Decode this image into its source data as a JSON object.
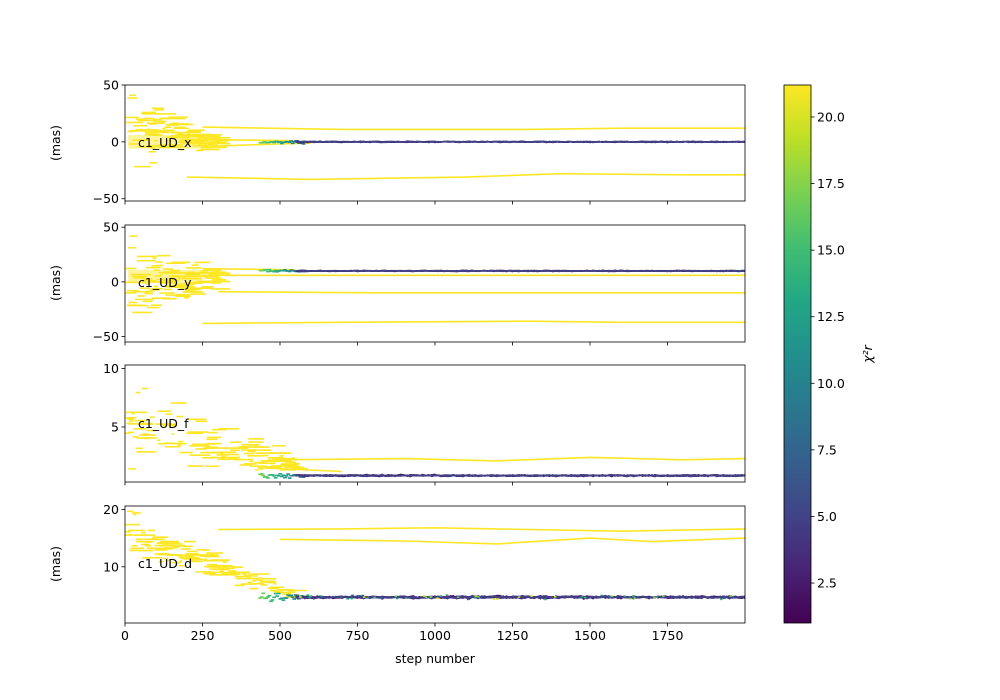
{
  "colorbar": {
    "label": "χ²r",
    "ticks": [
      "2.5",
      "5.0",
      "7.5",
      "10.0",
      "12.5",
      "15.0",
      "17.5",
      "20.0"
    ],
    "tick_values": [
      2.5,
      5.0,
      7.5,
      10.0,
      12.5,
      15.0,
      17.5,
      20.0
    ],
    "range": [
      1.0,
      21.2
    ],
    "colormap": "viridis",
    "stops": [
      "#440154",
      "#482475",
      "#414487",
      "#355f8d",
      "#2a788e",
      "#21908d",
      "#22a884",
      "#42be71",
      "#7ad151",
      "#bddf26",
      "#fde725"
    ]
  },
  "x_axis": {
    "label": "step number",
    "ticks": [
      "0",
      "250",
      "500",
      "750",
      "1000",
      "1250",
      "1500",
      "1750"
    ],
    "tick_values": [
      0,
      250,
      500,
      750,
      1000,
      1250,
      1500,
      1750
    ],
    "range": [
      0,
      2000
    ]
  },
  "chart_data": [
    {
      "type": "line",
      "parameter": "c1_UD_x",
      "ylabel": "(mas)",
      "ylim": [
        -52,
        50
      ],
      "yticks": [
        -50,
        0,
        50
      ],
      "ytick_labels": [
        "−50",
        "0",
        "50"
      ],
      "converged_start": 550,
      "converged_value": 0,
      "converged_spread": 0.8,
      "side_chains": [
        {
          "points": [
            [
              250,
              13
            ],
            [
              700,
              11
            ],
            [
              1300,
              11
            ],
            [
              1600,
              12
            ],
            [
              2000,
              12
            ]
          ]
        },
        {
          "points": [
            [
              200,
              -31
            ],
            [
              600,
              -33
            ],
            [
              1100,
              -31
            ],
            [
              1400,
              -28
            ],
            [
              1800,
              -29
            ],
            [
              2000,
              -29
            ]
          ]
        },
        {
          "points": [
            [
              250,
              2
            ],
            [
              550,
              1
            ]
          ]
        },
        {
          "points": [
            [
              250,
              -4
            ],
            [
              600,
              -1
            ]
          ]
        }
      ],
      "burn_in_cloud": {
        "center_start": 10,
        "center_end": 0,
        "spread_start": 45,
        "spread_end": 5,
        "until": 300
      }
    },
    {
      "type": "line",
      "parameter": "c1_UD_y",
      "ylabel": "(mas)",
      "ylim": [
        -55,
        52
      ],
      "yticks": [
        -50,
        0,
        50
      ],
      "ytick_labels": [
        "−50",
        "0",
        "50"
      ],
      "converged_start": 550,
      "converged_value": 10,
      "converged_spread": 0.8,
      "side_chains": [
        {
          "points": [
            [
              250,
              6
            ],
            [
              700,
              6
            ],
            [
              1300,
              6
            ],
            [
              2000,
              6
            ]
          ]
        },
        {
          "points": [
            [
              300,
              -9
            ],
            [
              800,
              -10
            ],
            [
              1400,
              -10
            ],
            [
              2000,
              -10
            ]
          ]
        },
        {
          "points": [
            [
              250,
              -38
            ],
            [
              700,
              -37
            ],
            [
              1300,
              -36
            ],
            [
              1600,
              -37
            ],
            [
              2000,
              -37
            ]
          ]
        },
        {
          "points": [
            [
              250,
              12
            ],
            [
              550,
              11
            ]
          ]
        }
      ],
      "burn_in_cloud": {
        "center_start": 0,
        "center_end": 5,
        "spread_start": 48,
        "spread_end": 10,
        "until": 300
      }
    },
    {
      "type": "line",
      "parameter": "c1_UD_f",
      "ylabel": "",
      "ylim": [
        0.3,
        10.3
      ],
      "yticks": [
        5,
        10
      ],
      "ytick_labels": [
        "5",
        "10"
      ],
      "converged_start": 550,
      "converged_value": 0.85,
      "converged_spread": 0.12,
      "side_chains": [
        {
          "points": [
            [
              500,
              2.2
            ],
            [
              900,
              2.3
            ],
            [
              1200,
              2.1
            ],
            [
              1500,
              2.4
            ],
            [
              1800,
              2.2
            ],
            [
              2000,
              2.3
            ]
          ]
        },
        {
          "points": [
            [
              450,
              1.5
            ],
            [
              700,
              1.2
            ]
          ]
        }
      ],
      "burn_in_cloud": {
        "center_start": 5.5,
        "center_end": 1.5,
        "spread_start": 4.5,
        "spread_end": 1.0,
        "until": 550
      }
    },
    {
      "type": "line",
      "parameter": "c1_UD_d",
      "ylabel": "(mas)",
      "ylim": [
        0.2,
        20.6
      ],
      "yticks": [
        10,
        20
      ],
      "ytick_labels": [
        "10",
        "20"
      ],
      "converged_start": 550,
      "converged_value": 4.7,
      "converged_spread": 0.35,
      "side_chains": [
        {
          "points": [
            [
              300,
              16.5
            ],
            [
              700,
              16.6
            ],
            [
              1000,
              16.8
            ],
            [
              1300,
              16.5
            ],
            [
              1600,
              16.2
            ],
            [
              2000,
              16.6
            ]
          ]
        },
        {
          "points": [
            [
              500,
              14.8
            ],
            [
              900,
              14.5
            ],
            [
              1200,
              14.0
            ],
            [
              1500,
              15.0
            ],
            [
              1700,
              14.4
            ],
            [
              2000,
              15.0
            ]
          ]
        }
      ],
      "burn_in_cloud": {
        "center_start": 15.5,
        "center_end": 4.8,
        "spread_start": 5.0,
        "spread_end": 0.8,
        "until": 550
      }
    }
  ]
}
